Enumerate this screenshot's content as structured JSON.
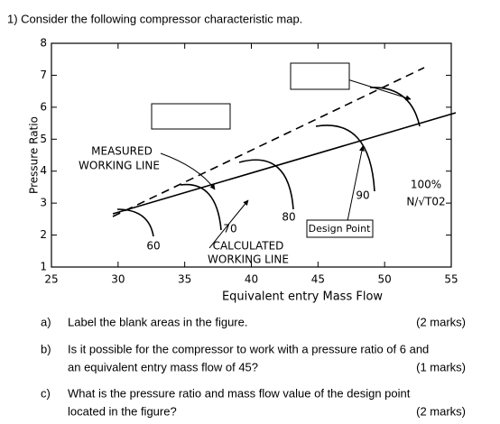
{
  "header": {
    "title": "1) Consider the following compressor characteristic map."
  },
  "figure": {
    "y_label": "Pressure Ratio",
    "x_label": "Equivalent entry Mass Flow",
    "xlim": [
      25,
      55
    ],
    "ylim": [
      1,
      8
    ],
    "xticks": [
      25,
      30,
      35,
      40,
      45,
      50,
      55
    ],
    "yticks": [
      1,
      2,
      3,
      4,
      5,
      6,
      7,
      8
    ],
    "measured_line": [
      "MEASURED",
      "WORKING LINE"
    ],
    "calculated_line": [
      "CALCULATED",
      "WORKING LINE"
    ],
    "speed_labels": [
      "60",
      "70",
      "80",
      "90"
    ],
    "speed_100": "100%",
    "speed_unit": "N/√T02",
    "design_point": "Design Point"
  },
  "questions": [
    {
      "letter": "a)",
      "lines": [
        "Label the blank areas in the figure."
      ],
      "marks": "(2 marks)"
    },
    {
      "letter": "b)",
      "lines": [
        "Is it possible for the compressor to work with a pressure ratio of 6 and",
        "an equivalent entry mass flow of 45?"
      ],
      "marks": "(1 marks)"
    },
    {
      "letter": "c)",
      "lines": [
        "What is the pressure ratio and mass flow value of the design point",
        "located in the figure?"
      ],
      "marks": "(2 marks)"
    }
  ]
}
